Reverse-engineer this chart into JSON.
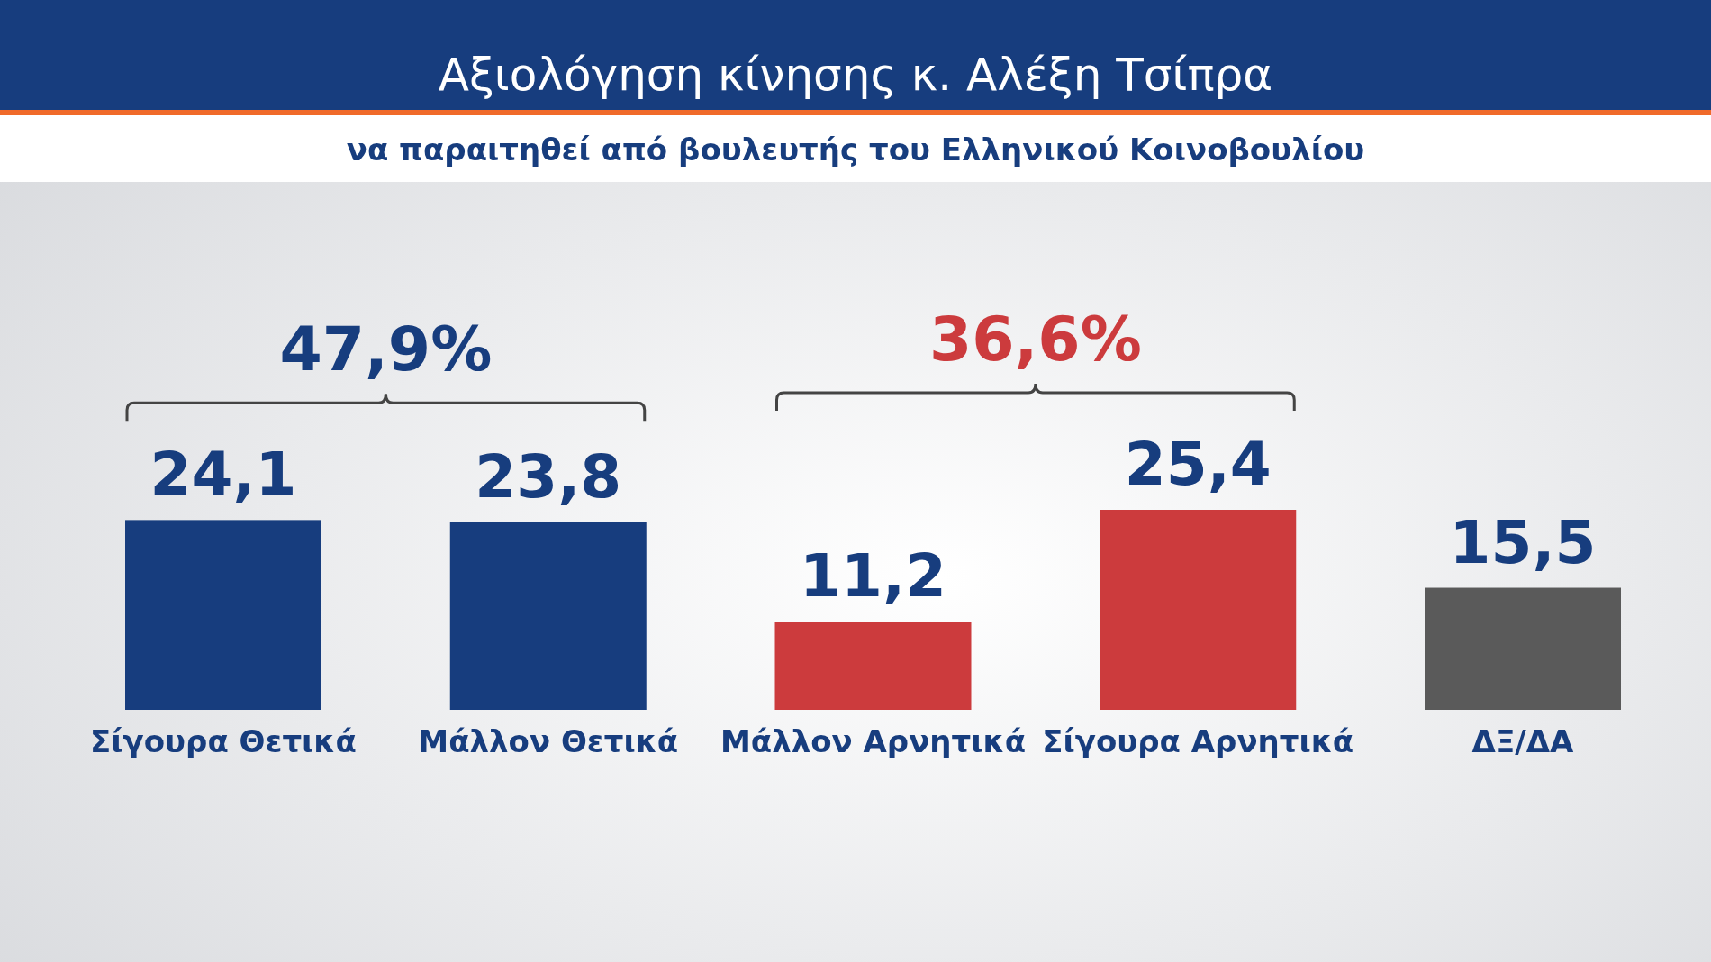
{
  "chart_data": {
    "type": "bar",
    "title": "Αξιολόγηση κίνησης κ. Αλέξη Τσίπρα",
    "subtitle": "να παραιτηθεί από βουλευτής του Ελληνικού Κοινοβουλίου",
    "categories": [
      "Σίγουρα Θετικά",
      "Μάλλον Θετικά",
      "Μάλλον Αρνητικά",
      "Σίγουρα Αρνητικά",
      "ΔΞ/ΔΑ"
    ],
    "values": [
      24.1,
      23.8,
      11.2,
      25.4,
      15.5
    ],
    "colors": [
      "#173d7e",
      "#173d7e",
      "#cc3b3d",
      "#cc3b3d",
      "#5a5a5a"
    ],
    "relative": false,
    "value_labels": [
      "24,1",
      "23,8",
      "11,2",
      "25,4",
      "15,5"
    ],
    "annotations": [
      "47,9%",
      "36,6%"
    ]
  }
}
